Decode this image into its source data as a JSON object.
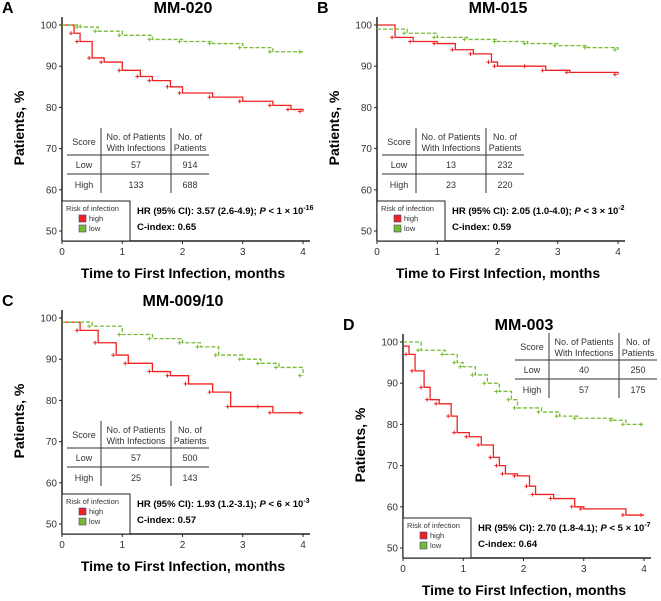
{
  "chart_data": [
    {
      "type": "line",
      "panel": "A",
      "title": "MM-020",
      "xlabel": "Time to First Infection, months",
      "ylabel": "Patients, %",
      "xlim": [
        0,
        4
      ],
      "ylim": [
        50,
        100
      ],
      "xticks": [
        "0",
        "1",
        "2",
        "3",
        "4"
      ],
      "yticks": [
        "50",
        "60",
        "70",
        "80",
        "90",
        "100"
      ],
      "table": {
        "headers": [
          "Score",
          "No. of Patients With Infections",
          "No. of Patients"
        ],
        "rows": [
          [
            "Low",
            "57",
            "914"
          ],
          [
            "High",
            "133",
            "688"
          ]
        ],
        "position": "lower-left"
      },
      "legend": {
        "title": "Risk of infection",
        "items": [
          "high",
          "low"
        ]
      },
      "hr": "HR (95% CI): 3.57 (2.6-4.9); ",
      "p_label": "P",
      "p_text": " < 1 × 10",
      "p_exp": "-16",
      "cindex": "C-index: 0.65",
      "series": [
        {
          "name": "high",
          "color": "#ee2222",
          "points": [
            [
              0,
              100
            ],
            [
              0.2,
              98
            ],
            [
              0.3,
              96
            ],
            [
              0.5,
              92
            ],
            [
              0.7,
              91
            ],
            [
              1,
              89
            ],
            [
              1.3,
              87.5
            ],
            [
              1.5,
              86.5
            ],
            [
              1.8,
              85
            ],
            [
              2,
              83.5
            ],
            [
              2.5,
              82.5
            ],
            [
              3,
              81.5
            ],
            [
              3.5,
              80.5
            ],
            [
              3.8,
              79.5
            ],
            [
              4,
              79
            ]
          ]
        },
        {
          "name": "low",
          "color": "#77bb33",
          "points": [
            [
              0,
              100
            ],
            [
              0.3,
              99.5
            ],
            [
              0.6,
              98.5
            ],
            [
              1,
              97.5
            ],
            [
              1.5,
              96.5
            ],
            [
              2,
              96
            ],
            [
              2.5,
              95.5
            ],
            [
              3,
              94.5
            ],
            [
              3.5,
              93.5
            ],
            [
              4,
              93.5
            ]
          ]
        }
      ]
    },
    {
      "type": "line",
      "panel": "B",
      "title": "MM-015",
      "xlabel": "Time to First Infection, months",
      "ylabel": "Patients, %",
      "xlim": [
        0,
        4
      ],
      "ylim": [
        50,
        100
      ],
      "xticks": [
        "0",
        "1",
        "2",
        "3",
        "4"
      ],
      "yticks": [
        "50",
        "60",
        "70",
        "80",
        "90",
        "100"
      ],
      "table": {
        "headers": [
          "Score",
          "No. of Patients With Infections",
          "No. of Patients"
        ],
        "rows": [
          [
            "Low",
            "13",
            "232"
          ],
          [
            "High",
            "23",
            "220"
          ]
        ],
        "position": "lower-left"
      },
      "legend": {
        "title": "Risk of infection",
        "items": [
          "high",
          "low"
        ]
      },
      "hr": "HR (95% CI): 2.05 (1.0-4.0); ",
      "p_label": "P",
      "p_text": " < 3 × 10",
      "p_exp": "-2",
      "cindex": "C-index: 0.59",
      "series": [
        {
          "name": "high",
          "color": "#ee2222",
          "points": [
            [
              0,
              100
            ],
            [
              0.3,
              97
            ],
            [
              0.6,
              96
            ],
            [
              1,
              95.5
            ],
            [
              1.3,
              94
            ],
            [
              1.6,
              93
            ],
            [
              1.9,
              91
            ],
            [
              2,
              90
            ],
            [
              2.5,
              90
            ],
            [
              2.8,
              89
            ],
            [
              3.2,
              88.5
            ],
            [
              4,
              88
            ]
          ]
        },
        {
          "name": "low",
          "color": "#77bb33",
          "points": [
            [
              0,
              99
            ],
            [
              0.5,
              98
            ],
            [
              1,
              97
            ],
            [
              1.5,
              96.5
            ],
            [
              2,
              96
            ],
            [
              2.5,
              95.5
            ],
            [
              3,
              95
            ],
            [
              3.5,
              94.5
            ],
            [
              4,
              94
            ]
          ]
        }
      ]
    },
    {
      "type": "line",
      "panel": "C",
      "title": "MM-009/10",
      "xlabel": "Time to First Infection, months",
      "ylabel": "Patients, %",
      "xlim": [
        0,
        4
      ],
      "ylim": [
        50,
        100
      ],
      "xticks": [
        "0",
        "1",
        "2",
        "3",
        "4"
      ],
      "yticks": [
        "50",
        "60",
        "70",
        "80",
        "90",
        "100"
      ],
      "table": {
        "headers": [
          "Score",
          "No. of Patients With Infections",
          "No. of Patients"
        ],
        "rows": [
          [
            "Low",
            "57",
            "500"
          ],
          [
            "High",
            "25",
            "143"
          ]
        ],
        "position": "lower-left"
      },
      "legend": {
        "title": "Risk of infection",
        "items": [
          "high",
          "low"
        ]
      },
      "hr": "HR (95% CI): 1.93 (1.2-3.1); ",
      "p_label": "P",
      "p_text": " < 6 × 10",
      "p_exp": "-3",
      "cindex": "C-index: 0.57",
      "series": [
        {
          "name": "high",
          "color": "#ee2222",
          "points": [
            [
              0,
              99
            ],
            [
              0.3,
              97
            ],
            [
              0.6,
              94
            ],
            [
              0.9,
              91
            ],
            [
              1.1,
              89
            ],
            [
              1.5,
              87
            ],
            [
              1.8,
              86
            ],
            [
              2.1,
              84
            ],
            [
              2.5,
              82
            ],
            [
              2.8,
              78.5
            ],
            [
              3.3,
              78.5
            ],
            [
              3.5,
              77
            ],
            [
              4,
              77
            ]
          ]
        },
        {
          "name": "low",
          "color": "#77bb33",
          "points": [
            [
              0,
              99
            ],
            [
              0.5,
              98
            ],
            [
              1,
              96
            ],
            [
              1.5,
              95
            ],
            [
              2,
              94
            ],
            [
              2.3,
              93
            ],
            [
              2.6,
              91
            ],
            [
              3,
              90
            ],
            [
              3.3,
              89
            ],
            [
              3.6,
              88
            ],
            [
              4,
              86
            ]
          ]
        }
      ]
    },
    {
      "type": "line",
      "panel": "D",
      "title": "MM-003",
      "xlabel": "Time to First Infection, months",
      "ylabel": "Patients, %",
      "xlim": [
        0,
        4
      ],
      "ylim": [
        50,
        100
      ],
      "xticks": [
        "0",
        "1",
        "2",
        "3",
        "4"
      ],
      "yticks": [
        "50",
        "60",
        "70",
        "80",
        "90",
        "100"
      ],
      "table": {
        "headers": [
          "Score",
          "No. of Patients With Infections",
          "No. of Patients"
        ],
        "rows": [
          [
            "Low",
            "40",
            "250"
          ],
          [
            "High",
            "57",
            "175"
          ]
        ],
        "position": "top-right"
      },
      "legend": {
        "title": "Risk of infection",
        "items": [
          "high",
          "low"
        ]
      },
      "hr": "HR (95% CI): 2.70 (1.8-4.1); ",
      "p_label": "P",
      "p_text": " < 5 × 10",
      "p_exp": "-7",
      "cindex": "C-index: 0.64",
      "series": [
        {
          "name": "high",
          "color": "#ee2222",
          "points": [
            [
              0,
              99
            ],
            [
              0.1,
              97
            ],
            [
              0.2,
              93
            ],
            [
              0.35,
              89
            ],
            [
              0.45,
              86
            ],
            [
              0.6,
              85
            ],
            [
              0.8,
              82
            ],
            [
              0.9,
              78
            ],
            [
              1.1,
              77
            ],
            [
              1.3,
              75
            ],
            [
              1.5,
              72
            ],
            [
              1.6,
              70
            ],
            [
              1.7,
              68
            ],
            [
              1.9,
              67.5
            ],
            [
              2.1,
              65
            ],
            [
              2.2,
              63
            ],
            [
              2.5,
              62
            ],
            [
              2.85,
              60
            ],
            [
              3,
              59.5
            ],
            [
              3.7,
              58
            ],
            [
              4,
              58
            ]
          ]
        },
        {
          "name": "low",
          "color": "#77bb33",
          "points": [
            [
              0,
              100
            ],
            [
              0.3,
              98
            ],
            [
              0.7,
              97
            ],
            [
              0.9,
              95
            ],
            [
              1,
              94
            ],
            [
              1.2,
              92
            ],
            [
              1.4,
              90
            ],
            [
              1.6,
              88
            ],
            [
              1.8,
              86
            ],
            [
              1.9,
              84
            ],
            [
              2.3,
              83
            ],
            [
              2.6,
              82
            ],
            [
              2.9,
              81.5
            ],
            [
              3.5,
              81
            ],
            [
              3.7,
              80
            ],
            [
              4,
              80
            ]
          ]
        }
      ]
    }
  ]
}
